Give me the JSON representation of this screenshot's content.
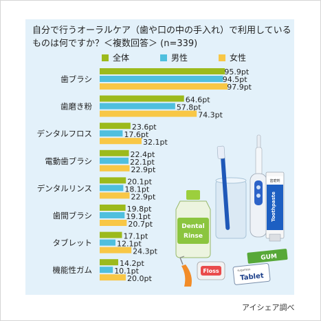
{
  "chart_data": {
    "type": "bar",
    "orientation": "horizontal",
    "title": "自分で行うオーラルケア（歯や口の中の手入れ）で利用しているものは何ですか？＜複数回答＞ (n=339)",
    "categories": [
      "歯ブラシ",
      "歯磨き粉",
      "デンタルフロス",
      "電動歯ブラシ",
      "デンタルリンス",
      "歯間ブラシ",
      "タブレット",
      "機能性ガム"
    ],
    "series": [
      {
        "name": "全体",
        "color": "#9cba1c",
        "values": [
          95.9,
          64.6,
          23.6,
          22.4,
          20.1,
          19.8,
          17.1,
          14.2
        ],
        "labels": [
          "95.9pt",
          "64.6pt",
          "23.6pt",
          "22.4pt",
          "20.1pt",
          "19.8pt",
          "17.1pt",
          "14.2pt"
        ]
      },
      {
        "name": "男性",
        "color": "#4fbfde",
        "values": [
          94.5,
          57.8,
          17.6,
          22.1,
          18.1,
          19.1,
          12.1,
          10.1
        ],
        "labels": [
          "94.5pt",
          "57.8pt",
          "17.6pt",
          "22.1pt",
          "18.1pt",
          "19.1pt",
          "12.1pt",
          "10.1pt"
        ]
      },
      {
        "name": "女性",
        "color": "#f8c746",
        "values": [
          97.9,
          74.3,
          32.1,
          22.9,
          22.9,
          20.7,
          24.3,
          20.0
        ],
        "labels": [
          "97.9pt",
          "74.3pt",
          "32.1pt",
          "22.9pt",
          "22.9pt",
          "20.7pt",
          "24.3pt",
          "20.0pt"
        ]
      }
    ],
    "xlim": [
      0,
      100
    ],
    "grid": false,
    "legend": "top"
  },
  "illustration": {
    "items": [
      "toothbrush-cup",
      "electric-toothbrush",
      "toothpaste-tube",
      "mouthwash-bottle",
      "gum-pack",
      "floss-box",
      "tablet-box",
      "interdental-brush"
    ],
    "texts": {
      "toothpaste": "Toothpaste",
      "toothpaste_top": "歯磨剤",
      "rinse1": "Dental",
      "rinse2": "Rinse",
      "gum": "GUM",
      "floss": "Floss",
      "tablet": "Tablet",
      "tablet_small": "sugarless"
    }
  },
  "source": "アイシェア調べ"
}
